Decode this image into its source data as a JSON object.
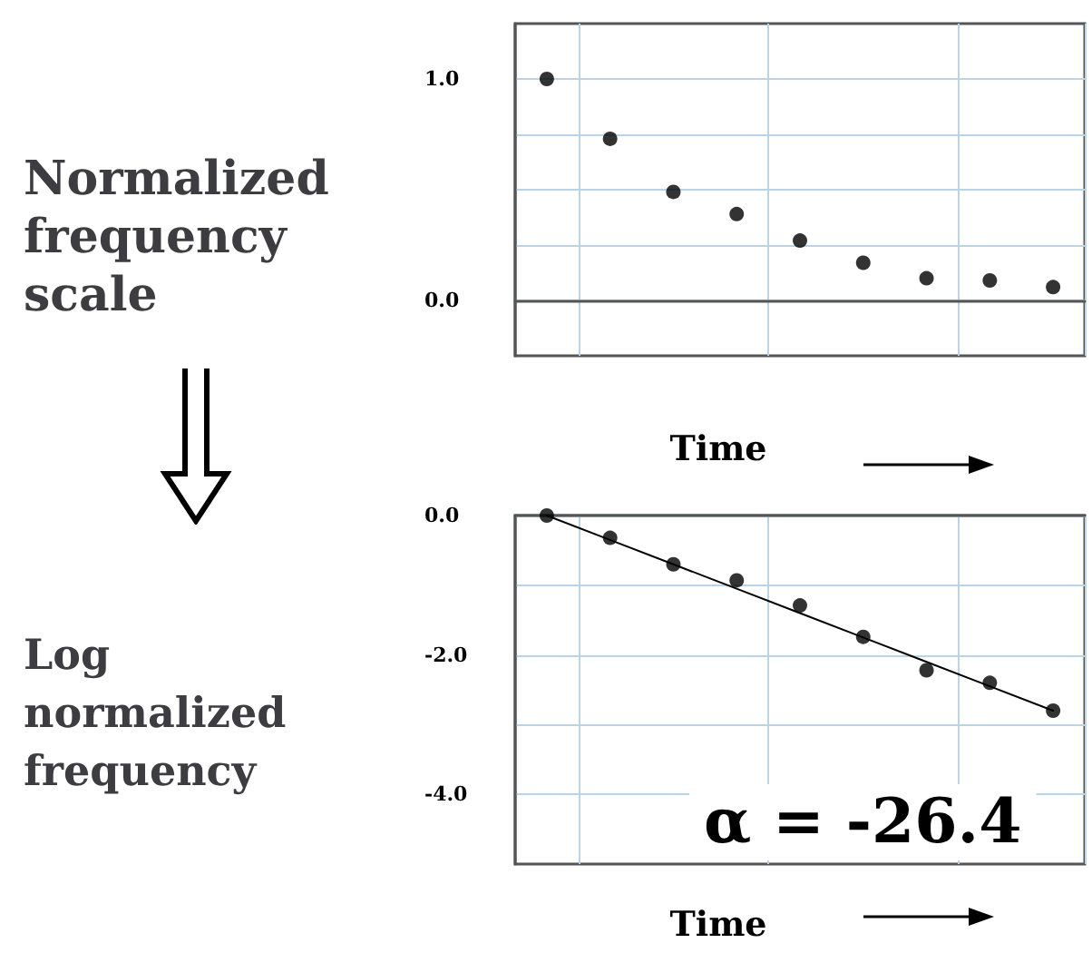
{
  "chart_data": [
    {
      "type": "scatter",
      "title": "Normalized frequency scale",
      "xlabel": "Time",
      "categories": [
        null,
        null,
        null,
        null,
        null,
        null,
        null,
        null,
        null
      ],
      "series": [
        {
          "color": "#000000",
          "values": [
            1.0,
            0.73,
            0.49,
            0.39,
            0.27,
            0.17,
            0.1,
            0.09,
            0.06
          ]
        }
      ],
      "ylim": [
        -0.25,
        1.25
      ],
      "yticks": [
        {
          "value": 0,
          "label": "0.0"
        },
        {
          "value": 0.25,
          "label": null
        },
        {
          "value": 0.5,
          "label": null
        },
        {
          "value": 0.75,
          "label": null
        },
        {
          "value": 1,
          "label": "1.0"
        }
      ],
      "grid": true,
      "marker": "circle",
      "tick_labels": "y"
    },
    {
      "type": "scatter",
      "title": "Log normalized frequency",
      "xlabel": "Time",
      "categories": [
        null,
        null,
        null,
        null,
        null,
        null,
        null,
        null,
        null
      ],
      "series": [
        {
          "color": "#000000",
          "values": [
            0,
            -0.32,
            -0.7,
            -0.93,
            -1.29,
            -1.74,
            -2.22,
            -2.4,
            -2.8
          ]
        },
        {
          "type": "line",
          "color": "#000000",
          "values": [
            0,
            -0.35,
            -0.7,
            -1.05,
            -1.4,
            -1.75,
            -2.1,
            -2.45,
            -2.8
          ],
          "marker": "none",
          "line_style": "solid"
        }
      ],
      "ylim": [
        -5,
        0
      ],
      "yticks": [
        {
          "value": 0,
          "label": "0.0"
        },
        {
          "value": -1,
          "label": null
        },
        {
          "value": -2,
          "label": "-2.0"
        },
        {
          "value": -3,
          "label": null
        },
        {
          "value": -4,
          "label": "-4.0"
        }
      ],
      "annotations": [
        "α = -26.4"
      ],
      "grid": true,
      "marker": "circle",
      "tick_labels": "y"
    }
  ]
}
